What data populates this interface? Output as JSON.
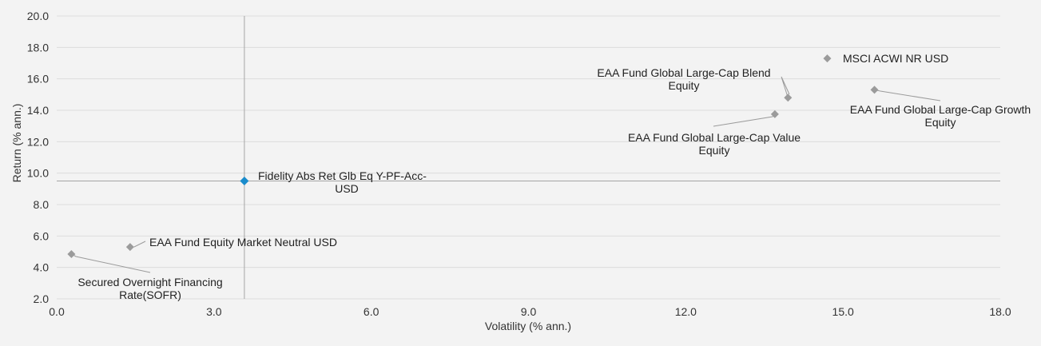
{
  "chart_data": {
    "type": "scatter",
    "xlabel": "Volatility (% ann.)",
    "ylabel": "Return (% ann.)",
    "xlim": [
      0,
      18
    ],
    "ylim": [
      2,
      20
    ],
    "x_ticks": [
      "0.0",
      "3.0",
      "6.0",
      "9.0",
      "12.0",
      "15.0",
      "18.0"
    ],
    "y_ticks": [
      "2.0",
      "4.0",
      "6.0",
      "8.0",
      "10.0",
      "12.0",
      "14.0",
      "16.0",
      "18.0",
      "20.0"
    ],
    "grid": "horizontal",
    "reference_lines": {
      "x": 3.58,
      "y": 9.5
    },
    "colors": {
      "highlight": "#1a8ccc",
      "peer": "#9b9b9b",
      "grid": "#dcdcdc",
      "reference": "#a5a5a5"
    },
    "points": [
      {
        "name": "Fidelity Abs Ret Glb Eq Y-PF-Acc-USD",
        "lines": [
          "Fidelity Abs Ret Glb Eq Y-PF-Acc-",
          "USD"
        ],
        "x": 3.58,
        "y": 9.5,
        "highlight": true
      },
      {
        "name": "MSCI ACWI NR USD",
        "lines": [
          "MSCI ACWI NR USD"
        ],
        "x": 14.7,
        "y": 17.3,
        "highlight": false
      },
      {
        "name": "EAA Fund Global Large-Cap Blend Equity",
        "lines": [
          "EAA Fund Global Large-Cap Blend",
          "Equity"
        ],
        "x": 13.95,
        "y": 14.8,
        "highlight": false
      },
      {
        "name": "EAA Fund Global Large-Cap Growth Equity",
        "lines": [
          "EAA Fund Global Large-Cap Growth",
          "Equity"
        ],
        "x": 15.6,
        "y": 15.3,
        "highlight": false
      },
      {
        "name": "EAA Fund Global Large-Cap Value Equity",
        "lines": [
          "EAA Fund Global Large-Cap Value",
          "Equity"
        ],
        "x": 13.7,
        "y": 13.75,
        "highlight": false
      },
      {
        "name": "EAA Fund Equity Market Neutral USD",
        "lines": [
          "EAA Fund Equity Market Neutral USD"
        ],
        "x": 1.4,
        "y": 5.3,
        "highlight": false
      },
      {
        "name": "Secured Overnight Financing Rate(SOFR)",
        "lines": [
          "Secured Overnight Financing",
          "Rate(SOFR)"
        ],
        "x": 0.28,
        "y": 4.85,
        "highlight": false
      }
    ]
  }
}
